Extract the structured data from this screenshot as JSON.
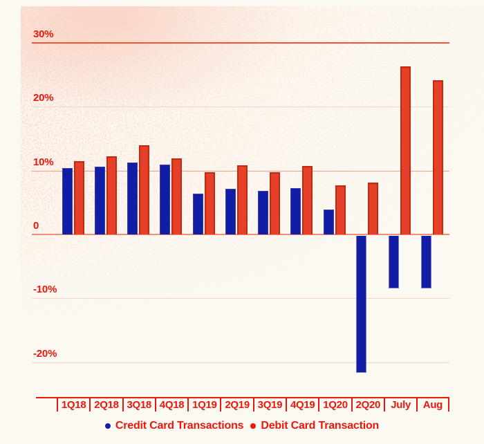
{
  "chart_data": {
    "type": "bar",
    "title": "",
    "xlabel": "",
    "ylabel": "",
    "units": "%",
    "categories": [
      "1Q18",
      "2Q18",
      "3Q18",
      "4Q18",
      "1Q19",
      "2Q19",
      "3Q19",
      "4Q19",
      "1Q20",
      "2Q20",
      "July",
      "Aug"
    ],
    "series": [
      {
        "name": "Credit Card Transactions",
        "color": "#111da5",
        "values": [
          10.4,
          10.6,
          11.3,
          10.9,
          6.4,
          7.1,
          6.8,
          7.3,
          3.9,
          -21.4,
          -8.2,
          -8.2
        ]
      },
      {
        "name": "Debit Card Transaction",
        "color": "#e5402a",
        "values": [
          11.5,
          12.2,
          14.0,
          11.9,
          9.7,
          10.8,
          9.8,
          10.7,
          7.7,
          8.1,
          26.3,
          24.2
        ]
      }
    ],
    "y_ticks": [
      {
        "label": "30%",
        "value": 30,
        "line_color": "#f25336",
        "line_weight": 2
      },
      {
        "label": "20%",
        "value": 20,
        "line_color": "#fbd2c6",
        "line_weight": 1
      },
      {
        "label": "10%",
        "value": 10,
        "line_color": "#f59c84",
        "line_weight": 1
      },
      {
        "label": "0",
        "value": 0,
        "line_color": "#f28d74",
        "line_weight": 2
      },
      {
        "label": "-10%",
        "value": -10,
        "line_color": "#fbd2c6",
        "line_weight": 1
      },
      {
        "label": "-20%",
        "value": -20,
        "line_color": "#fbcfc2",
        "line_weight": 1
      }
    ],
    "ylim": [
      -25,
      33
    ],
    "grid": "horizontal lines every 10%",
    "legend_position": "bottom"
  },
  "legend": {
    "items": [
      {
        "label": "Credit Card Transactions",
        "color": "#1a1aae",
        "marker": "circle"
      },
      {
        "label": "Debit Card Transaction",
        "color": "#e8190c",
        "marker": "circle"
      }
    ]
  },
  "colors": {
    "background": "#fcf9f2",
    "speckle": "#f3a48c",
    "axis_text": "#e8190c",
    "axis_line": "#e8190c",
    "credit_bar": "#111da5",
    "credit_bar_border": "#3a3fae",
    "debit_bar": "#e5402a",
    "debit_bar_border": "#c12a10"
  }
}
